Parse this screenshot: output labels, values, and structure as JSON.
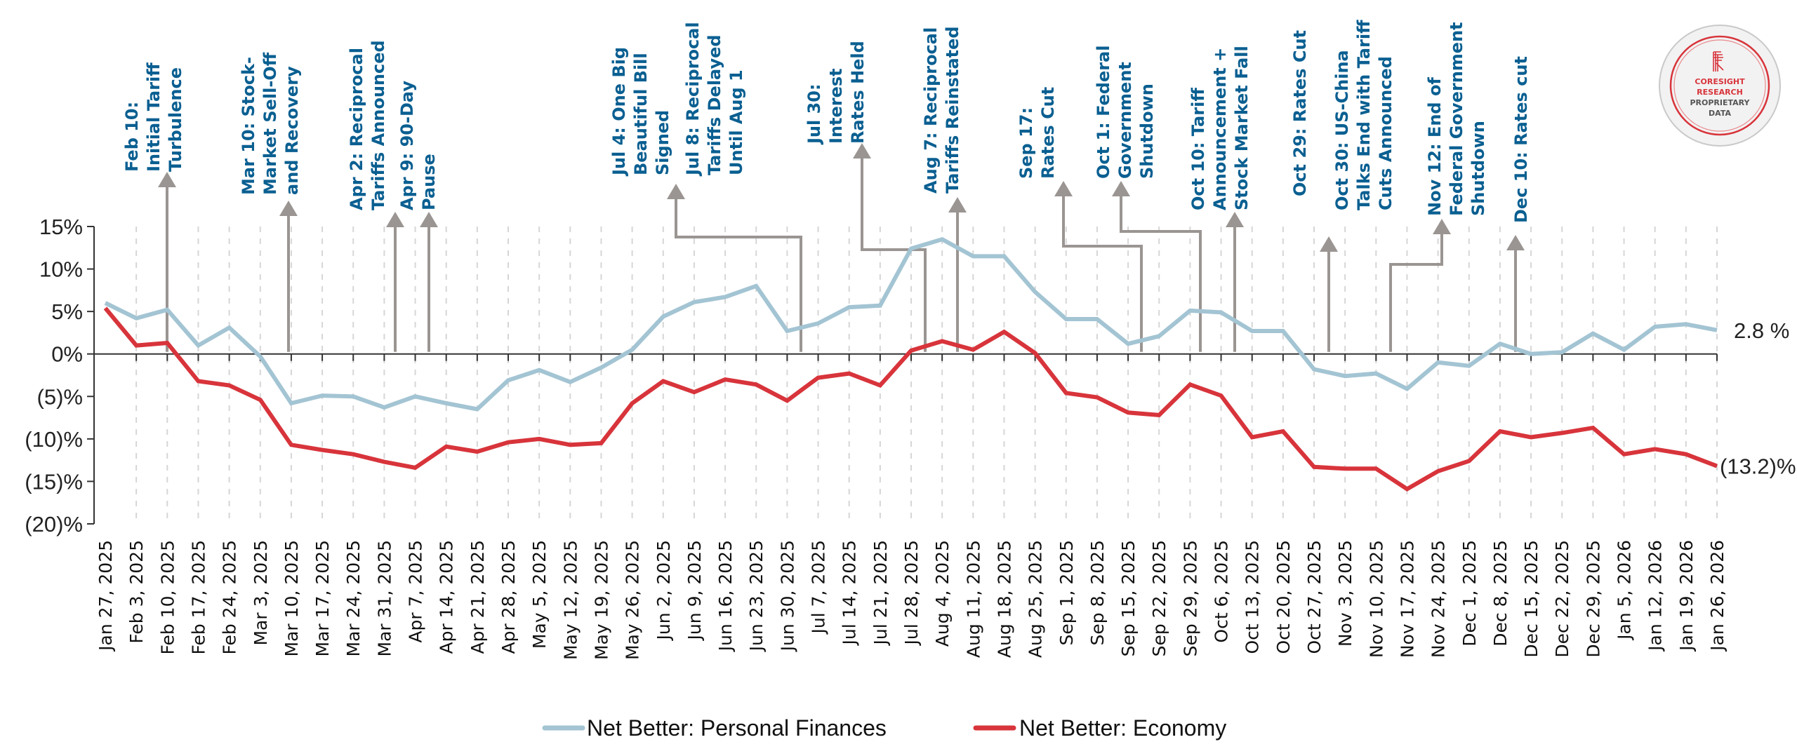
{
  "chart_data": {
    "type": "line",
    "title": "",
    "xlabel": "",
    "ylabel": "",
    "ylim": [
      -20,
      15
    ],
    "yticks": [
      15,
      10,
      5,
      0,
      -5,
      -10,
      -15,
      -20
    ],
    "ytick_labels": [
      "15%",
      "10%",
      "5%",
      "0%",
      "(5)%",
      "(10)%",
      "(15)%",
      "(20)%"
    ],
    "grid": "vertical dashed",
    "legend_position": "bottom-center",
    "categories": [
      "Jan 27, 2025",
      "Feb 3, 2025",
      "Feb 10, 2025",
      "Feb 17, 2025",
      "Feb 24, 2025",
      "Mar 3, 2025",
      "Mar 10, 2025",
      "Mar 17, 2025",
      "Mar 24, 2025",
      "Mar 31, 2025",
      "Apr 7, 2025",
      "Apr 14, 2025",
      "Apr 21, 2025",
      "Apr 28, 2025",
      "May 5, 2025",
      "May 12, 2025",
      "May 19, 2025",
      "May 26, 2025",
      "Jun 2, 2025",
      "Jun 9, 2025",
      "Jun 16, 2025",
      "Jun 23, 2025",
      "Jun 30, 2025",
      "Jul 7, 2025",
      "Jul 14, 2025",
      "Jul 21, 2025",
      "Jul 28, 2025",
      "Aug 4, 2025",
      "Aug 11, 2025",
      "Aug 18, 2025",
      "Aug 25, 2025",
      "Sep 1, 2025",
      "Sep 8, 2025",
      "Sep 15, 2025",
      "Sep 22, 2025",
      "Sep 29, 2025",
      "Oct 6, 2025",
      "Oct 13, 2025",
      "Oct 20, 2025",
      "Oct 27, 2025",
      "Nov 3, 2025",
      "Nov 10, 2025",
      "Nov 17, 2025",
      "Nov 24, 2025",
      "Dec 1, 2025",
      "Dec 8, 2025",
      "Dec 15, 2025",
      "Dec 22, 2025",
      "Dec 29, 2025",
      "Jan 5, 2026",
      "Jan 12, 2026",
      "Jan 19, 2026",
      "Jan 26, 2026"
    ],
    "series": [
      {
        "name": "Net Better: Personal Finances",
        "color": "#a3c4d3",
        "values": [
          6.0,
          4.2,
          5.2,
          1.0,
          3.1,
          -0.3,
          -5.8,
          -4.9,
          -5.0,
          -6.3,
          -5.0,
          -5.8,
          -6.5,
          -3.1,
          -1.9,
          -3.3,
          -1.6,
          0.5,
          4.4,
          6.1,
          6.7,
          8.0,
          2.7,
          3.6,
          5.5,
          5.7,
          12.4,
          13.5,
          11.5,
          11.5,
          7.3,
          4.1,
          4.1,
          1.2,
          2.1,
          5.1,
          4.9,
          2.7,
          2.7,
          -1.8,
          -2.6,
          -2.3,
          -4.1,
          -1.0,
          -1.4,
          1.2,
          0.0,
          0.2,
          2.4,
          0.5,
          3.2,
          3.5,
          2.8
        ],
        "end_label": "2.8 %"
      },
      {
        "name": "Net Better: Economy",
        "color": "#d8343b",
        "values": [
          5.4,
          1.0,
          1.3,
          -3.2,
          -3.7,
          -5.4,
          -10.7,
          -11.3,
          -11.8,
          -12.7,
          -13.4,
          -10.9,
          -11.5,
          -10.4,
          -10.0,
          -10.7,
          -10.5,
          -5.8,
          -3.2,
          -4.5,
          -3.0,
          -3.6,
          -5.5,
          -2.8,
          -2.3,
          -3.7,
          0.4,
          1.5,
          0.5,
          2.6,
          0.1,
          -4.6,
          -5.1,
          -6.9,
          -7.2,
          -3.6,
          -4.9,
          -9.8,
          -9.1,
          -13.3,
          -13.5,
          -13.5,
          -15.9,
          -13.8,
          -12.6,
          -9.1,
          -9.8,
          -9.3,
          -8.7,
          -11.8,
          -11.2,
          -11.8,
          -13.2
        ],
        "end_label": "(13.2)%"
      }
    ],
    "annotations": [
      {
        "lines": [
          "Feb 10:",
          "Initial Tariff",
          "Turbulence"
        ],
        "date_index": 2.0
      },
      {
        "lines": [
          "Mar 10: Stock-",
          "Market Sell-Off",
          "and Recovery"
        ],
        "date_index": 6.0
      },
      {
        "lines": [
          "Apr 2: Reciprocal",
          "Tariffs Announced"
        ],
        "date_index": 9.3
      },
      {
        "lines": [
          "Apr 9: 90-Day",
          "Pause"
        ],
        "date_index": 10.3
      },
      {
        "lines": [
          "Jul 4: One Big",
          "Beautiful Bill",
          "Signed"
        ],
        "date_index": 22.4
      },
      {
        "lines": [
          "Jul 8: Reciprocal",
          "Tariffs Delayed",
          "Until Aug 1"
        ],
        "date_index": 23.1
      },
      {
        "lines": [
          "Jul 30:",
          "Interest",
          "Rates Held"
        ],
        "date_index": 26.4
      },
      {
        "lines": [
          "Aug 7: Reciprocal",
          "Tariffs Reinstated"
        ],
        "date_index": 27.5
      },
      {
        "lines": [
          "Sep 17:",
          "Rates Cut"
        ],
        "date_index": 33.5
      },
      {
        "lines": [
          "Oct 1: Federal",
          "Government",
          "Shutdown"
        ],
        "date_index": 35.3
      },
      {
        "lines": [
          "Oct 10: Tariff",
          "Announcement +",
          "Stock Market Fall"
        ],
        "date_index": 36.6
      },
      {
        "lines": [
          "Oct 29: Rates Cut"
        ],
        "date_index": 39.3
      },
      {
        "lines": [
          "Oct 30: US-China",
          "Talks End with Tariff",
          "Cuts Announced"
        ],
        "date_index": 39.3
      },
      {
        "lines": [
          "Nov 12: End of",
          "Federal Government",
          "Shutdown"
        ],
        "date_index": 41.3
      },
      {
        "lines": [
          "Dec 10: Rates cut"
        ],
        "date_index": 45.4
      }
    ]
  },
  "badge": {
    "line1": "CORESIGHT",
    "line2": "RESEARCH",
    "line3": "PROPRIETARY",
    "line4": "DATA",
    "accent": "#d8343b"
  },
  "colors": {
    "annotation_text": "#0a5f91",
    "arrow": "#9a9592",
    "axis": "#333333",
    "grid": "#d6d6d6"
  }
}
